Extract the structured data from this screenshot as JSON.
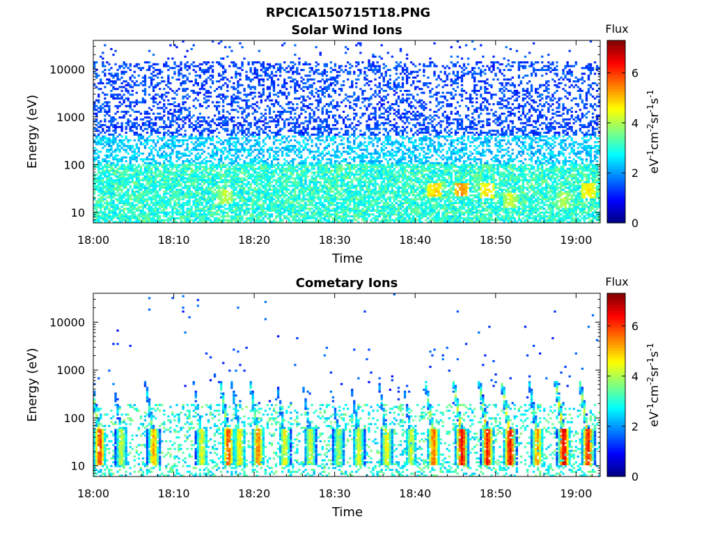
{
  "figure_title": "RPCICA150715T18.PNG",
  "chart_data": [
    {
      "type": "heatmap",
      "title": "Solar Wind Ions",
      "xlabel": "Time",
      "ylabel": "Energy (eV)",
      "x_ticks": [
        "18:00",
        "18:10",
        "18:20",
        "18:30",
        "18:40",
        "18:50",
        "19:00"
      ],
      "x_tick_minutes": [
        0,
        10,
        20,
        30,
        40,
        50,
        60
      ],
      "xlim_minutes": [
        0,
        63
      ],
      "y_scale": "log",
      "y_ticks": [
        "10",
        "100",
        "1000",
        "10000"
      ],
      "y_tick_values": [
        10,
        100,
        1000,
        10000
      ],
      "ylim": [
        6,
        40000
      ],
      "colorbar": {
        "label_top": "Flux",
        "label_side": "eV⁻¹cm⁻²sr⁻¹s⁻¹",
        "ticks": [
          "0",
          "2",
          "4",
          "6"
        ],
        "tick_values": [
          0,
          2,
          4,
          6
        ],
        "range": [
          0,
          7.3
        ]
      },
      "description": "dense speckled flux across all energies, mostly ~1-2 above 100 eV, ~2.5-3.5 below 100 eV",
      "hot_spots": [
        {
          "t": 42.5,
          "e": 30,
          "v": 5.2
        },
        {
          "t": 45.8,
          "e": 30,
          "v": 5.6
        },
        {
          "t": 49.0,
          "e": 28,
          "v": 5.0
        },
        {
          "t": 61.5,
          "e": 28,
          "v": 5.0
        },
        {
          "t": 16.5,
          "e": 22,
          "v": 4.4
        },
        {
          "t": 51.8,
          "e": 18,
          "v": 4.5
        },
        {
          "t": 58.5,
          "e": 18,
          "v": 4.3
        }
      ]
    },
    {
      "type": "heatmap",
      "title": "Cometary Ions",
      "xlabel": "Time",
      "ylabel": "Energy (eV)",
      "x_ticks": [
        "18:00",
        "18:10",
        "18:20",
        "18:30",
        "18:40",
        "18:50",
        "19:00"
      ],
      "x_tick_minutes": [
        0,
        10,
        20,
        30,
        40,
        50,
        60
      ],
      "xlim_minutes": [
        0,
        63
      ],
      "y_scale": "log",
      "y_ticks": [
        "10",
        "100",
        "1000",
        "10000"
      ],
      "y_tick_values": [
        10,
        100,
        1000,
        10000
      ],
      "ylim": [
        6,
        40000
      ],
      "colorbar": {
        "label_top": "Flux",
        "label_side": "eV⁻¹cm⁻²sr⁻¹s⁻¹",
        "ticks": [
          "0",
          "2",
          "4",
          "6"
        ],
        "tick_values": [
          0,
          2,
          4,
          6
        ],
        "range": [
          0,
          7.3
        ]
      },
      "description": "intermittent bursts of flux below ~300 eV with vertical dispersion streaks; sparse points at high energy",
      "bursts": [
        {
          "t": 0.8,
          "peak": 6.3
        },
        {
          "t": 3.5,
          "peak": 4.6
        },
        {
          "t": 7.5,
          "peak": 5.5
        },
        {
          "t": 13.5,
          "peak": 4.8
        },
        {
          "t": 16.8,
          "peak": 6.2
        },
        {
          "t": 18.2,
          "peak": 5.0
        },
        {
          "t": 20.5,
          "peak": 5.8
        },
        {
          "t": 23.8,
          "peak": 4.9
        },
        {
          "t": 27.0,
          "peak": 4.6
        },
        {
          "t": 30.5,
          "peak": 4.3
        },
        {
          "t": 33.0,
          "peak": 4.7
        },
        {
          "t": 36.5,
          "peak": 5.0
        },
        {
          "t": 39.5,
          "peak": 4.6
        },
        {
          "t": 42.3,
          "peak": 6.0
        },
        {
          "t": 45.8,
          "peak": 6.8
        },
        {
          "t": 49.0,
          "peak": 6.6
        },
        {
          "t": 51.8,
          "peak": 6.8
        },
        {
          "t": 55.2,
          "peak": 5.6
        },
        {
          "t": 58.5,
          "peak": 7.0
        },
        {
          "t": 61.5,
          "peak": 6.6
        }
      ]
    }
  ]
}
